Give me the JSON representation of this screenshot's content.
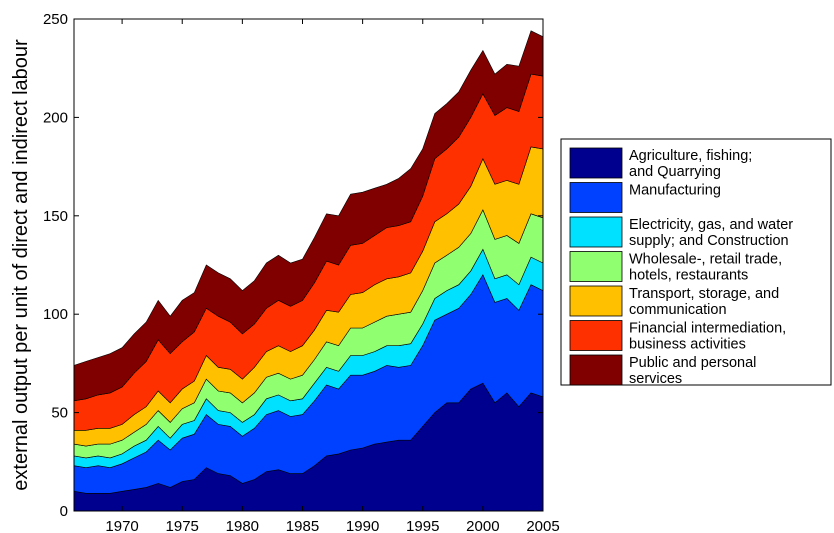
{
  "chart_data": {
    "type": "area",
    "stacked": true,
    "title": "",
    "xlabel": "",
    "ylabel": "external output per unit of direct and indirect labour",
    "xlim": [
      1966,
      2005
    ],
    "ylim": [
      0,
      250
    ],
    "xticks": [
      1970,
      1975,
      1980,
      1985,
      1990,
      1995,
      2000,
      2005
    ],
    "yticks": [
      0,
      50,
      100,
      150,
      200,
      250
    ],
    "grid": false,
    "legend_position": "right",
    "x": [
      1966,
      1967,
      1968,
      1969,
      1970,
      1971,
      1972,
      1973,
      1974,
      1975,
      1976,
      1977,
      1978,
      1979,
      1980,
      1981,
      1982,
      1983,
      1984,
      1985,
      1986,
      1987,
      1988,
      1989,
      1990,
      1991,
      1992,
      1993,
      1994,
      1995,
      1996,
      1997,
      1998,
      1999,
      2000,
      2001,
      2002,
      2003,
      2004,
      2005
    ],
    "series": [
      {
        "name": "Agriculture, fishing;\nand Quarrying",
        "color": "#00008f",
        "values": [
          10,
          9,
          9,
          9,
          10,
          11,
          12,
          14,
          12,
          15,
          16,
          22,
          19,
          18,
          14,
          16,
          20,
          21,
          19,
          19,
          23,
          28,
          29,
          31,
          32,
          34,
          35,
          36,
          36,
          43,
          50,
          55,
          55,
          62,
          65,
          55,
          60,
          53,
          60,
          58
        ]
      },
      {
        "name": "Manufacturing",
        "color": "#0040ff",
        "values": [
          13,
          13,
          14,
          13,
          14,
          16,
          18,
          22,
          19,
          22,
          23,
          27,
          25,
          25,
          24,
          26,
          29,
          30,
          29,
          30,
          33,
          36,
          33,
          38,
          37,
          37,
          39,
          37,
          38,
          41,
          47,
          45,
          48,
          48,
          55,
          51,
          48,
          49,
          55,
          54
        ]
      },
      {
        "name": "Electricity, gas, and water\nsupply; and Construction",
        "color": "#00e0ff",
        "values": [
          5,
          5,
          5,
          5,
          5,
          6,
          6,
          7,
          6,
          7,
          7,
          8,
          7,
          7,
          7,
          7,
          8,
          8,
          8,
          8,
          9,
          9,
          9,
          10,
          10,
          10,
          10,
          11,
          11,
          11,
          11,
          12,
          12,
          12,
          13,
          12,
          12,
          13,
          14,
          14
        ]
      },
      {
        "name": "Wholesale-, retail trade,\nhotels, restaurants",
        "color": "#90ff70",
        "values": [
          6,
          6,
          6,
          7,
          7,
          7,
          8,
          8,
          8,
          8,
          9,
          10,
          10,
          10,
          10,
          11,
          11,
          11,
          11,
          12,
          12,
          13,
          13,
          14,
          14,
          15,
          15,
          16,
          16,
          17,
          18,
          18,
          19,
          19,
          20,
          20,
          20,
          21,
          22,
          23
        ]
      },
      {
        "name": "Transport, storage, and\ncommunication",
        "color": "#ffc000",
        "values": [
          7,
          8,
          8,
          8,
          8,
          9,
          9,
          10,
          10,
          10,
          11,
          12,
          12,
          12,
          12,
          13,
          13,
          14,
          14,
          15,
          15,
          16,
          17,
          17,
          18,
          19,
          19,
          19,
          20,
          20,
          21,
          21,
          22,
          24,
          26,
          28,
          28,
          30,
          34,
          35
        ]
      },
      {
        "name": "Financial intermediation,\nbusiness activities",
        "color": "#ff3000",
        "values": [
          15,
          16,
          17,
          18,
          19,
          21,
          23,
          26,
          25,
          24,
          25,
          24,
          26,
          24,
          23,
          22,
          22,
          23,
          23,
          23,
          24,
          25,
          24,
          25,
          25,
          25,
          26,
          26,
          26,
          28,
          32,
          33,
          34,
          35,
          33,
          35,
          37,
          37,
          37,
          37
        ]
      },
      {
        "name": "Public and personal\nservices",
        "color": "#800000",
        "values": [
          18,
          19,
          19,
          20,
          20,
          20,
          20,
          20,
          19,
          21,
          20,
          22,
          22,
          22,
          22,
          22,
          23,
          23,
          22,
          21,
          23,
          24,
          25,
          26,
          26,
          24,
          22,
          24,
          27,
          24,
          23,
          23,
          23,
          24,
          22,
          21,
          22,
          23,
          22,
          20
        ]
      }
    ]
  }
}
